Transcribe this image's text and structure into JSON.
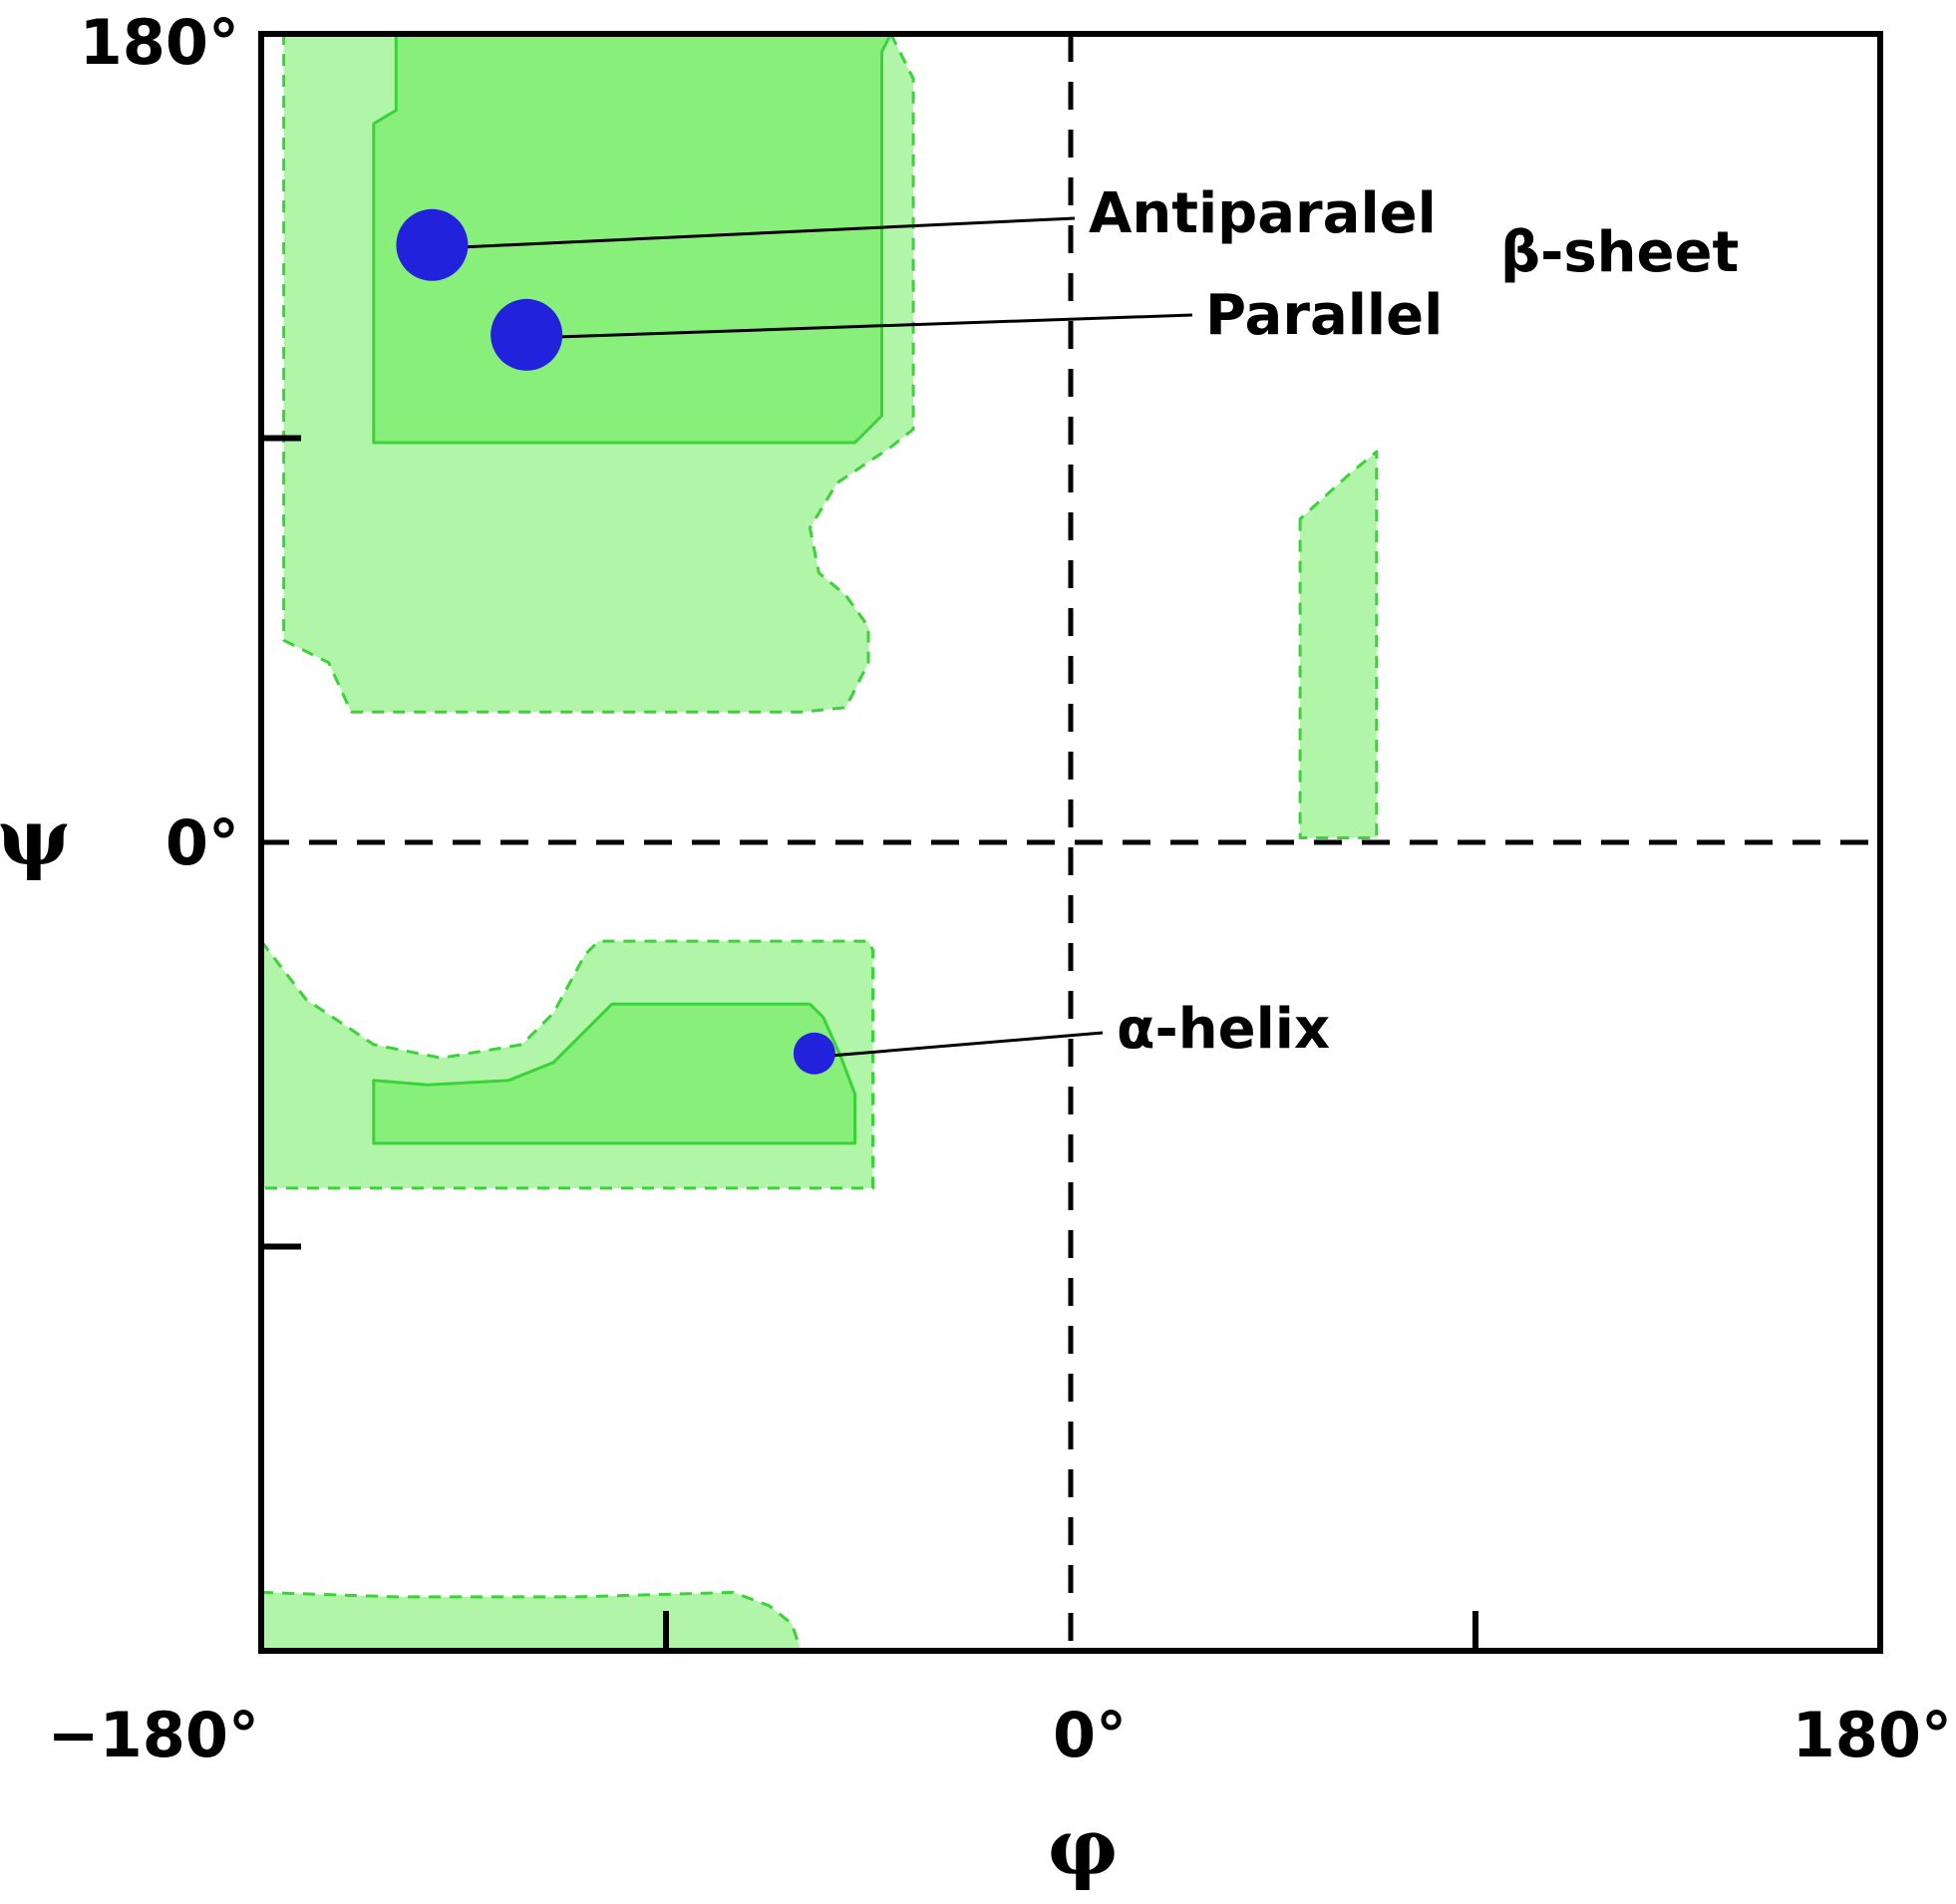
{
  "chart_data": {
    "type": "scatter",
    "title": "",
    "xlabel": "φ",
    "ylabel": "ψ",
    "xlim": [
      -180,
      180
    ],
    "ylim": [
      -180,
      180
    ],
    "x_tick_labels": [
      {
        "value": -180,
        "label": "−180°"
      },
      {
        "value": 0,
        "label": "0°"
      },
      {
        "value": 180,
        "label": "180°"
      }
    ],
    "y_tick_labels": [
      {
        "value": 180,
        "label": "180°"
      },
      {
        "value": 0,
        "label": "0°"
      }
    ],
    "minor_ticks": {
      "x": [
        -90,
        90
      ],
      "y": [
        90,
        -90
      ]
    },
    "reference_lines": {
      "x": 0,
      "y": 0
    },
    "grid": false,
    "colors": {
      "allowed_fill": "#b0f5a8",
      "favorable_fill": "#88f07a",
      "region_stroke": "#3cd23a",
      "point": "#2222dd",
      "axes": "#000000"
    },
    "points": [
      {
        "label": "Antiparalel",
        "phi": -142,
        "psi": 133
      },
      {
        "label": "Parallel",
        "phi": -121,
        "psi": 113
      },
      {
        "label": "α-helix",
        "phi": -57,
        "psi": -47
      }
    ],
    "group_label": "β-sheet",
    "regions": [
      {
        "kind": "allowed",
        "polygon": [
          [
            -175,
            180
          ],
          [
            -40,
            180
          ],
          [
            -35,
            170
          ],
          [
            -35,
            92
          ],
          [
            -40,
            88
          ],
          [
            -52,
            80
          ],
          [
            -58,
            70
          ],
          [
            -56,
            60
          ],
          [
            -50,
            55
          ],
          [
            -45,
            48
          ],
          [
            -45,
            40
          ],
          [
            -50,
            30
          ],
          [
            -60,
            29
          ],
          [
            -160,
            29
          ],
          [
            -165,
            40
          ],
          [
            -175,
            45
          ]
        ]
      },
      {
        "kind": "allowed",
        "polygon": [
          [
            -180,
            -22
          ],
          [
            -170,
            -35
          ],
          [
            -155,
            -45
          ],
          [
            -140,
            -48
          ],
          [
            -122,
            -45
          ],
          [
            -115,
            -38
          ],
          [
            -108,
            -25
          ],
          [
            -105,
            -22
          ],
          [
            -45,
            -22
          ],
          [
            -44,
            -24
          ],
          [
            -44,
            -77
          ],
          [
            -180,
            -77
          ]
        ]
      },
      {
        "kind": "allowed",
        "polygon": [
          [
            -180,
            -167
          ],
          [
            -150,
            -168
          ],
          [
            -110,
            -168
          ],
          [
            -75,
            -167
          ],
          [
            -67,
            -170
          ],
          [
            -62,
            -174
          ],
          [
            -60,
            -180
          ],
          [
            -180,
            -180
          ]
        ]
      },
      {
        "kind": "allowed",
        "polygon": [
          [
            51,
            72
          ],
          [
            51,
            1
          ],
          [
            68,
            1
          ],
          [
            68,
            87
          ],
          [
            62,
            82
          ]
        ]
      },
      {
        "kind": "favorable",
        "polygon": [
          [
            -150,
            180
          ],
          [
            -40,
            180
          ],
          [
            -42,
            176
          ],
          [
            -42,
            95
          ],
          [
            -48,
            89
          ],
          [
            -155,
            89
          ],
          [
            -155,
            160
          ],
          [
            -150,
            163
          ]
        ]
      },
      {
        "kind": "favorable",
        "polygon": [
          [
            -155,
            -53
          ],
          [
            -143,
            -54
          ],
          [
            -125,
            -53
          ],
          [
            -115,
            -49
          ],
          [
            -103,
            -37
          ],
          [
            -102,
            -36
          ],
          [
            -58,
            -36
          ],
          [
            -55,
            -39
          ],
          [
            -51,
            -48
          ],
          [
            -48,
            -56
          ],
          [
            -48,
            -67
          ],
          [
            -155,
            -67
          ]
        ]
      }
    ]
  }
}
